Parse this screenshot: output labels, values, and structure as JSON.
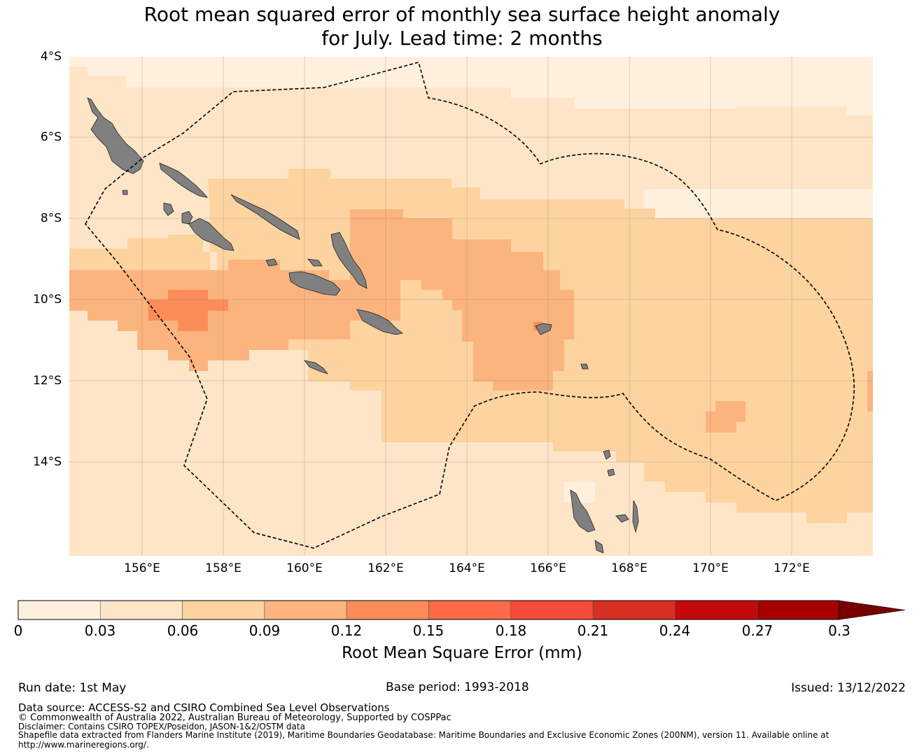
{
  "header": {
    "title_line1": "Root mean squared error of monthly sea surface height anomaly",
    "title_line2": "for July. Lead time: 2 months"
  },
  "map": {
    "lat_labels": [
      "4°S",
      "6°S",
      "8°S",
      "10°S",
      "12°S",
      "14°S"
    ],
    "lon_labels": [
      "156°E",
      "158°E",
      "160°E",
      "162°E",
      "164°E",
      "166°E",
      "168°E",
      "170°E",
      "172°E"
    ],
    "land_color": "#808080",
    "boundary_style": "dashed black",
    "grid": true
  },
  "colorbar": {
    "ticks": [
      "0",
      "0.03",
      "0.06",
      "0.09",
      "0.12",
      "0.15",
      "0.18",
      "0.21",
      "0.24",
      "0.27",
      "0.3"
    ],
    "colors": [
      "#fff0de",
      "#fee5c8",
      "#fdd3a0",
      "#fcb47e",
      "#fc8d59",
      "#fc6a47",
      "#f44c38",
      "#d72f20",
      "#c5080b",
      "#a60000"
    ],
    "extend_color": "#7a0000",
    "label": "Root Mean Square Error (mm)"
  },
  "footer": {
    "run_date": "Run date: 1st May",
    "base_period": "Base period: 1993-2018",
    "issued": "Issued: 13/12/2022",
    "data_source": "Data source: ACCESS-S2 and CSIRO Combined Sea Level Observations",
    "copyright": "© Commonwealth of Australia 2022, Australian Bureau of Meteorology, Supported by COSPPac",
    "disclaimer": "Disclaimer: Contains CSIRO TOPEX/Poseidon, JASON-1&2/OSTM data",
    "shapefile_line1": "Shapefile data extracted from Flanders Marine Institute (2019), Maritime Boundaries Geodatabase: Maritime Boundaries and Exclusive Economic Zones (200NM), version 11. Available online at",
    "shapefile_line2": "http://www.marineregions.org/."
  }
}
